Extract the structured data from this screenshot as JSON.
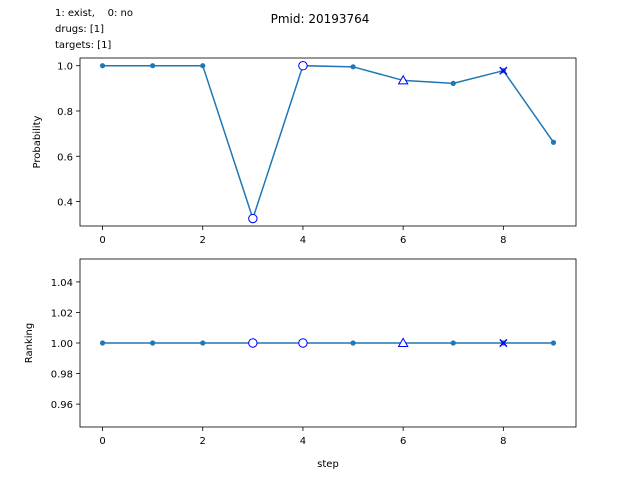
{
  "figure": {
    "title": "Pmid: 20193764",
    "legend_lines": [
      "1: exist,    0: no",
      "drugs: [1]",
      "targets: [1]"
    ]
  },
  "chart_data": [
    {
      "type": "line",
      "ylabel": "Probability",
      "xlabel": "",
      "xlim": [
        -0.45,
        9.45
      ],
      "ylim": [
        0.292,
        1.034
      ],
      "xticks": [
        0,
        2,
        4,
        6,
        8
      ],
      "yticks": [
        0.4,
        0.6,
        0.8,
        1.0
      ],
      "ytick_labels": [
        "0.4",
        "0.6",
        "0.8",
        "1.0"
      ],
      "color": "#1f77b4",
      "series": [
        {
          "x": [
            0,
            1,
            2,
            3,
            4,
            5,
            6,
            7,
            8,
            9
          ],
          "values": [
            1.0,
            1.0,
            1.0,
            0.325,
            1.0,
            0.995,
            0.935,
            0.922,
            0.978,
            0.662
          ]
        }
      ],
      "markers": [
        {
          "x": 3,
          "y": 0.325,
          "shape": "circle",
          "color": "#0000ff"
        },
        {
          "x": 4,
          "y": 1.0,
          "shape": "circle",
          "color": "#0000ff"
        },
        {
          "x": 6,
          "y": 0.935,
          "shape": "triangle",
          "color": "#0000ff"
        },
        {
          "x": 8,
          "y": 0.978,
          "shape": "x",
          "color": "#0000ff"
        }
      ]
    },
    {
      "type": "line",
      "ylabel": "Ranking",
      "xlabel": "step",
      "xlim": [
        -0.45,
        9.45
      ],
      "ylim": [
        0.945,
        1.055
      ],
      "xticks": [
        0,
        2,
        4,
        6,
        8
      ],
      "yticks": [
        0.96,
        0.98,
        1.0,
        1.02,
        1.04
      ],
      "ytick_labels": [
        "0.96",
        "0.98",
        "1.00",
        "1.02",
        "1.04"
      ],
      "color": "#1f77b4",
      "series": [
        {
          "x": [
            0,
            1,
            2,
            3,
            4,
            5,
            6,
            7,
            8,
            9
          ],
          "values": [
            1,
            1,
            1,
            1,
            1,
            1,
            1,
            1,
            1,
            1
          ]
        }
      ],
      "markers": [
        {
          "x": 3,
          "y": 1.0,
          "shape": "circle",
          "color": "#0000ff"
        },
        {
          "x": 4,
          "y": 1.0,
          "shape": "circle",
          "color": "#0000ff"
        },
        {
          "x": 6,
          "y": 1.0,
          "shape": "triangle",
          "color": "#0000ff"
        },
        {
          "x": 8,
          "y": 1.0,
          "shape": "x",
          "color": "#0000ff"
        }
      ]
    }
  ]
}
